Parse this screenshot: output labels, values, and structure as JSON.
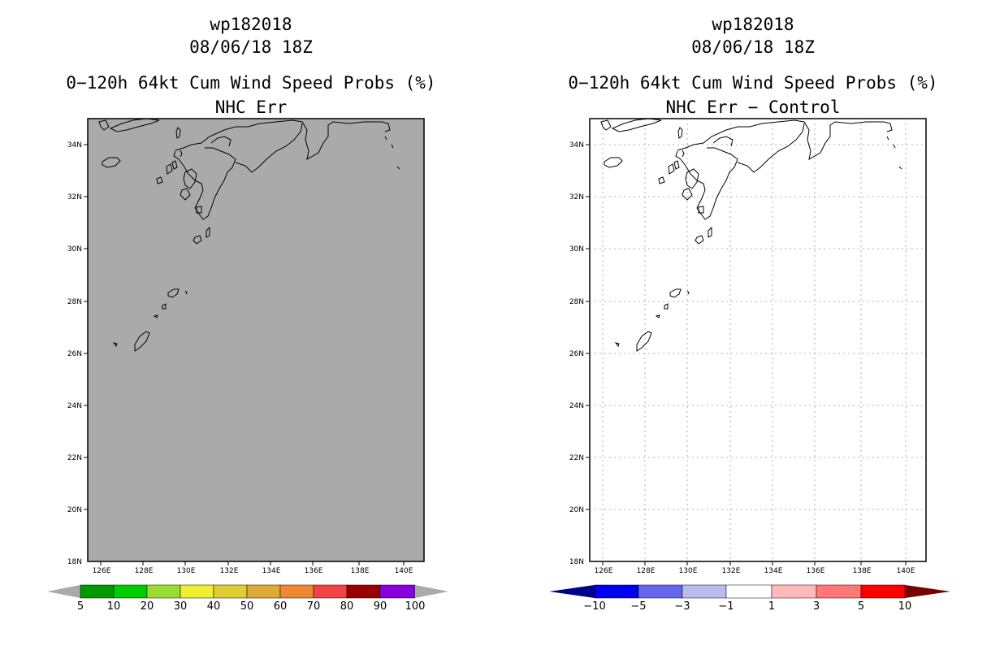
{
  "left_panel": {
    "storm_id": "wp182018",
    "datetime": "08/06/18 18Z",
    "product": "0−120h 64kt Cum Wind Speed Probs (%)",
    "subtitle": "NHC Err",
    "lat_labels": [
      "34N",
      "32N",
      "30N",
      "28N",
      "26N",
      "24N",
      "22N",
      "20N",
      "18N"
    ],
    "lon_labels": [
      "126E",
      "128E",
      "130E",
      "132E",
      "134E",
      "136E",
      "138E",
      "140E"
    ],
    "map_fill_color": "#aaaaaa",
    "colorbar": {
      "labels": [
        "5",
        "10",
        "20",
        "30",
        "40",
        "50",
        "60",
        "70",
        "80",
        "90",
        "100"
      ],
      "colors": [
        "#009a00",
        "#00cc00",
        "#99dd33",
        "#eeee33",
        "#ddcc33",
        "#ddaa33",
        "#ee8833",
        "#ee4444",
        "#990000",
        "#8800dd"
      ],
      "end_color": "#aaaaaa"
    }
  },
  "right_panel": {
    "storm_id": "wp182018",
    "datetime": "08/06/18 18Z",
    "product": "0−120h 64kt Cum Wind Speed Probs (%)",
    "subtitle": "NHC Err − Control",
    "lat_labels": [
      "34N",
      "32N",
      "30N",
      "28N",
      "26N",
      "24N",
      "22N",
      "20N",
      "18N"
    ],
    "lon_labels": [
      "126E",
      "128E",
      "130E",
      "132E",
      "134E",
      "136E",
      "138E",
      "140E"
    ],
    "map_fill_color": "#ffffff",
    "colorbar": {
      "labels": [
        "−10",
        "−5",
        "−3",
        "−1",
        "1",
        "3",
        "5",
        "10"
      ],
      "colors": [
        "#0000ee",
        "#6666ee",
        "#bbbbee",
        "#ffffff",
        "#ffbbbb",
        "#ff7777",
        "#ff0000"
      ],
      "low_end_color": "#000088",
      "high_end_color": "#770000"
    }
  }
}
